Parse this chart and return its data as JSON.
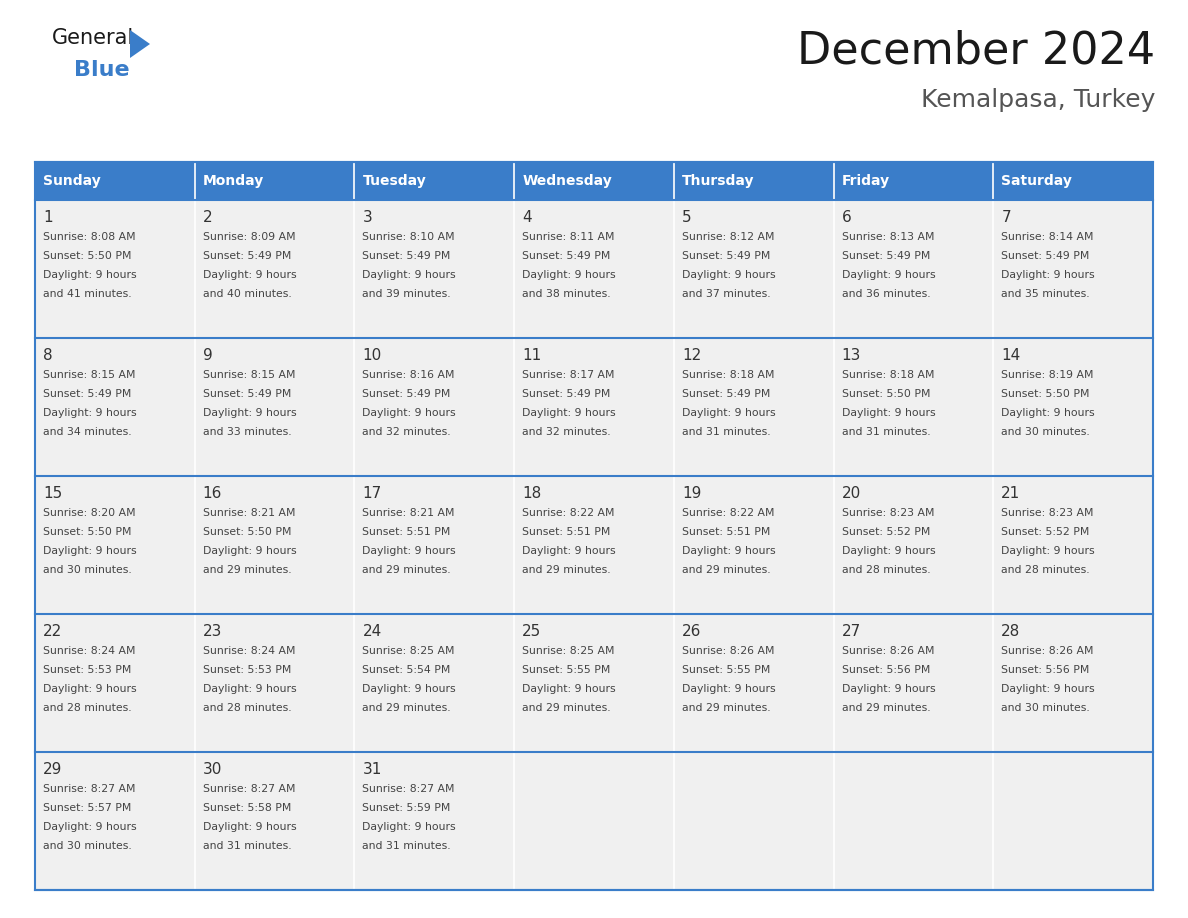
{
  "title": "December 2024",
  "subtitle": "Kemalpasa, Turkey",
  "header_color": "#3A7DC9",
  "header_text_color": "#FFFFFF",
  "cell_bg_color": "#F0F0F0",
  "text_color": "#444444",
  "line_color": "#3A7DC9",
  "day_names": [
    "Sunday",
    "Monday",
    "Tuesday",
    "Wednesday",
    "Thursday",
    "Friday",
    "Saturday"
  ],
  "days": [
    {
      "day": 1,
      "col": 0,
      "row": 0,
      "sunrise": "8:08 AM",
      "sunset": "5:50 PM",
      "daylight_hours": 9,
      "daylight_minutes": 41
    },
    {
      "day": 2,
      "col": 1,
      "row": 0,
      "sunrise": "8:09 AM",
      "sunset": "5:49 PM",
      "daylight_hours": 9,
      "daylight_minutes": 40
    },
    {
      "day": 3,
      "col": 2,
      "row": 0,
      "sunrise": "8:10 AM",
      "sunset": "5:49 PM",
      "daylight_hours": 9,
      "daylight_minutes": 39
    },
    {
      "day": 4,
      "col": 3,
      "row": 0,
      "sunrise": "8:11 AM",
      "sunset": "5:49 PM",
      "daylight_hours": 9,
      "daylight_minutes": 38
    },
    {
      "day": 5,
      "col": 4,
      "row": 0,
      "sunrise": "8:12 AM",
      "sunset": "5:49 PM",
      "daylight_hours": 9,
      "daylight_minutes": 37
    },
    {
      "day": 6,
      "col": 5,
      "row": 0,
      "sunrise": "8:13 AM",
      "sunset": "5:49 PM",
      "daylight_hours": 9,
      "daylight_minutes": 36
    },
    {
      "day": 7,
      "col": 6,
      "row": 0,
      "sunrise": "8:14 AM",
      "sunset": "5:49 PM",
      "daylight_hours": 9,
      "daylight_minutes": 35
    },
    {
      "day": 8,
      "col": 0,
      "row": 1,
      "sunrise": "8:15 AM",
      "sunset": "5:49 PM",
      "daylight_hours": 9,
      "daylight_minutes": 34
    },
    {
      "day": 9,
      "col": 1,
      "row": 1,
      "sunrise": "8:15 AM",
      "sunset": "5:49 PM",
      "daylight_hours": 9,
      "daylight_minutes": 33
    },
    {
      "day": 10,
      "col": 2,
      "row": 1,
      "sunrise": "8:16 AM",
      "sunset": "5:49 PM",
      "daylight_hours": 9,
      "daylight_minutes": 32
    },
    {
      "day": 11,
      "col": 3,
      "row": 1,
      "sunrise": "8:17 AM",
      "sunset": "5:49 PM",
      "daylight_hours": 9,
      "daylight_minutes": 32
    },
    {
      "day": 12,
      "col": 4,
      "row": 1,
      "sunrise": "8:18 AM",
      "sunset": "5:49 PM",
      "daylight_hours": 9,
      "daylight_minutes": 31
    },
    {
      "day": 13,
      "col": 5,
      "row": 1,
      "sunrise": "8:18 AM",
      "sunset": "5:50 PM",
      "daylight_hours": 9,
      "daylight_minutes": 31
    },
    {
      "day": 14,
      "col": 6,
      "row": 1,
      "sunrise": "8:19 AM",
      "sunset": "5:50 PM",
      "daylight_hours": 9,
      "daylight_minutes": 30
    },
    {
      "day": 15,
      "col": 0,
      "row": 2,
      "sunrise": "8:20 AM",
      "sunset": "5:50 PM",
      "daylight_hours": 9,
      "daylight_minutes": 30
    },
    {
      "day": 16,
      "col": 1,
      "row": 2,
      "sunrise": "8:21 AM",
      "sunset": "5:50 PM",
      "daylight_hours": 9,
      "daylight_minutes": 29
    },
    {
      "day": 17,
      "col": 2,
      "row": 2,
      "sunrise": "8:21 AM",
      "sunset": "5:51 PM",
      "daylight_hours": 9,
      "daylight_minutes": 29
    },
    {
      "day": 18,
      "col": 3,
      "row": 2,
      "sunrise": "8:22 AM",
      "sunset": "5:51 PM",
      "daylight_hours": 9,
      "daylight_minutes": 29
    },
    {
      "day": 19,
      "col": 4,
      "row": 2,
      "sunrise": "8:22 AM",
      "sunset": "5:51 PM",
      "daylight_hours": 9,
      "daylight_minutes": 29
    },
    {
      "day": 20,
      "col": 5,
      "row": 2,
      "sunrise": "8:23 AM",
      "sunset": "5:52 PM",
      "daylight_hours": 9,
      "daylight_minutes": 28
    },
    {
      "day": 21,
      "col": 6,
      "row": 2,
      "sunrise": "8:23 AM",
      "sunset": "5:52 PM",
      "daylight_hours": 9,
      "daylight_minutes": 28
    },
    {
      "day": 22,
      "col": 0,
      "row": 3,
      "sunrise": "8:24 AM",
      "sunset": "5:53 PM",
      "daylight_hours": 9,
      "daylight_minutes": 28
    },
    {
      "day": 23,
      "col": 1,
      "row": 3,
      "sunrise": "8:24 AM",
      "sunset": "5:53 PM",
      "daylight_hours": 9,
      "daylight_minutes": 28
    },
    {
      "day": 24,
      "col": 2,
      "row": 3,
      "sunrise": "8:25 AM",
      "sunset": "5:54 PM",
      "daylight_hours": 9,
      "daylight_minutes": 29
    },
    {
      "day": 25,
      "col": 3,
      "row": 3,
      "sunrise": "8:25 AM",
      "sunset": "5:55 PM",
      "daylight_hours": 9,
      "daylight_minutes": 29
    },
    {
      "day": 26,
      "col": 4,
      "row": 3,
      "sunrise": "8:26 AM",
      "sunset": "5:55 PM",
      "daylight_hours": 9,
      "daylight_minutes": 29
    },
    {
      "day": 27,
      "col": 5,
      "row": 3,
      "sunrise": "8:26 AM",
      "sunset": "5:56 PM",
      "daylight_hours": 9,
      "daylight_minutes": 29
    },
    {
      "day": 28,
      "col": 6,
      "row": 3,
      "sunrise": "8:26 AM",
      "sunset": "5:56 PM",
      "daylight_hours": 9,
      "daylight_minutes": 30
    },
    {
      "day": 29,
      "col": 0,
      "row": 4,
      "sunrise": "8:27 AM",
      "sunset": "5:57 PM",
      "daylight_hours": 9,
      "daylight_minutes": 30
    },
    {
      "day": 30,
      "col": 1,
      "row": 4,
      "sunrise": "8:27 AM",
      "sunset": "5:58 PM",
      "daylight_hours": 9,
      "daylight_minutes": 31
    },
    {
      "day": 31,
      "col": 2,
      "row": 4,
      "sunrise": "8:27 AM",
      "sunset": "5:59 PM",
      "daylight_hours": 9,
      "daylight_minutes": 31
    }
  ]
}
